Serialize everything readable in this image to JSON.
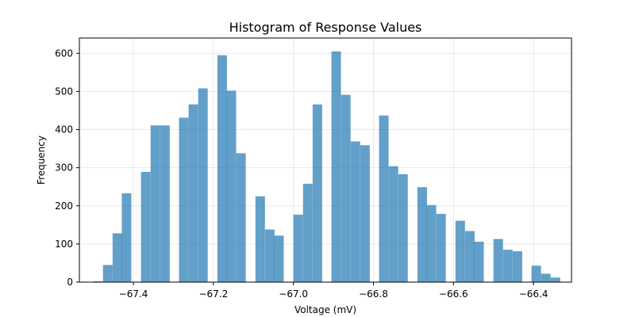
{
  "chart_data": {
    "type": "bar",
    "title": "Histogram of Response Values",
    "xlabel": "Voltage (mV)",
    "ylabel": "Frequency",
    "xlim": [
      -67.535,
      -66.305
    ],
    "ylim": [
      0,
      640
    ],
    "grid": true,
    "bar_color": "#1f77b4",
    "bin_width": 0.0238,
    "x_ticks": [
      -67.4,
      -67.2,
      -67.0,
      -66.8,
      -66.6,
      -66.4
    ],
    "x_tick_labels": [
      "−67.4",
      "−67.2",
      "−67.0",
      "−66.8",
      "−66.6",
      "−66.4"
    ],
    "y_ticks": [
      0,
      100,
      200,
      300,
      400,
      500,
      600
    ],
    "y_tick_labels": [
      "0",
      "100",
      "200",
      "300",
      "400",
      "500",
      "600"
    ],
    "bins": [
      {
        "x": -67.5,
        "value": 2
      },
      {
        "x": -67.476,
        "value": 45
      },
      {
        "x": -67.452,
        "value": 128
      },
      {
        "x": -67.429,
        "value": 233
      },
      {
        "x": -67.381,
        "value": 289
      },
      {
        "x": -67.357,
        "value": 411
      },
      {
        "x": -67.333,
        "value": 411
      },
      {
        "x": -67.286,
        "value": 431
      },
      {
        "x": -67.262,
        "value": 466
      },
      {
        "x": -67.238,
        "value": 508
      },
      {
        "x": -67.19,
        "value": 595
      },
      {
        "x": -67.167,
        "value": 502
      },
      {
        "x": -67.143,
        "value": 338
      },
      {
        "x": -67.095,
        "value": 225
      },
      {
        "x": -67.071,
        "value": 138
      },
      {
        "x": -67.048,
        "value": 122
      },
      {
        "x": -67.0,
        "value": 177
      },
      {
        "x": -66.976,
        "value": 258
      },
      {
        "x": -66.952,
        "value": 466
      },
      {
        "x": -66.905,
        "value": 605
      },
      {
        "x": -66.881,
        "value": 491
      },
      {
        "x": -66.857,
        "value": 369
      },
      {
        "x": -66.833,
        "value": 359
      },
      {
        "x": -66.786,
        "value": 437
      },
      {
        "x": -66.762,
        "value": 304
      },
      {
        "x": -66.738,
        "value": 283
      },
      {
        "x": -66.69,
        "value": 249
      },
      {
        "x": -66.667,
        "value": 202
      },
      {
        "x": -66.643,
        "value": 179
      },
      {
        "x": -66.595,
        "value": 161
      },
      {
        "x": -66.571,
        "value": 134
      },
      {
        "x": -66.548,
        "value": 106
      },
      {
        "x": -66.5,
        "value": 113
      },
      {
        "x": -66.476,
        "value": 85
      },
      {
        "x": -66.452,
        "value": 81
      },
      {
        "x": -66.405,
        "value": 43
      },
      {
        "x": -66.381,
        "value": 22
      },
      {
        "x": -66.357,
        "value": 12
      }
    ]
  }
}
